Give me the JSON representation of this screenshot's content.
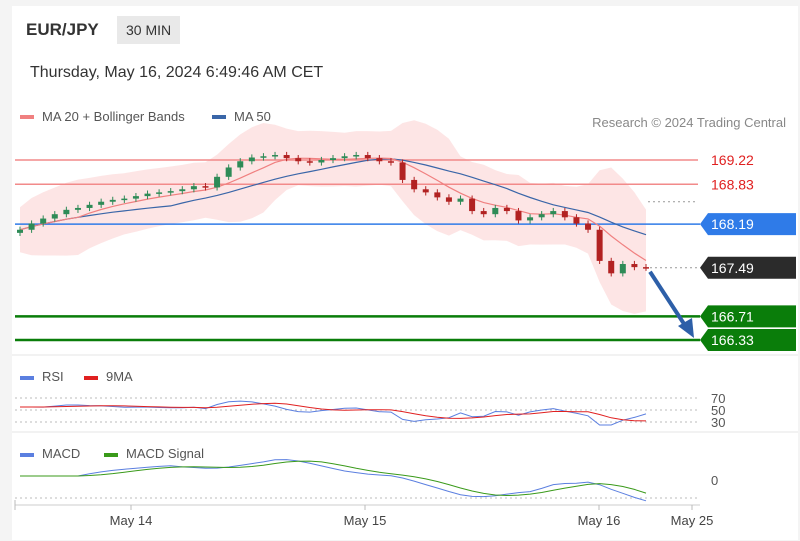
{
  "header": {
    "pair": "EUR/JPY",
    "timeframe": "30 MIN",
    "datetime": "Thursday, May 16, 2024 6:49:46 AM CET"
  },
  "legend_top": {
    "ma20": "MA 20 + Bollinger Bands",
    "ma50": "MA 50",
    "credit": "Research © 2024 Trading Central"
  },
  "legend_rsi": {
    "rsi": "RSI",
    "ma9": "9MA"
  },
  "legend_macd": {
    "macd": "MACD",
    "signal": "MACD Signal"
  },
  "colors": {
    "up": "#2e8b57",
    "down": "#b22222",
    "ma20": "#f08080",
    "ma50": "#3a66a8",
    "band": "#fde0e0",
    "resistance": "#f28a8a",
    "pivot": "#2f7be8",
    "support": "#0a7d0a",
    "last": "#2b2b2b",
    "arrow": "#2d5fa8",
    "rsi": "#5b7fe0",
    "rsi_ma": "#e02020",
    "macd": "#5b7fe0",
    "macd_signal": "#3a9a1a"
  },
  "chart_data": {
    "type": "candlestick",
    "title": "EUR/JPY 30 MIN",
    "x_ticks": [
      "May 14",
      "May 15",
      "May 16",
      "May 25"
    ],
    "price_levels": [
      {
        "name": "resistance",
        "value": 169.22
      },
      {
        "name": "resistance",
        "value": 168.83
      },
      {
        "name": "pivot",
        "value": 168.19
      },
      {
        "name": "last",
        "value": 167.49
      },
      {
        "name": "support",
        "value": 166.71
      },
      {
        "name": "support",
        "value": 166.33
      }
    ],
    "close_series": [
      168.1,
      168.2,
      168.28,
      168.35,
      168.42,
      168.45,
      168.5,
      168.55,
      168.58,
      168.6,
      168.64,
      168.68,
      168.7,
      168.72,
      168.75,
      168.8,
      168.78,
      168.95,
      169.1,
      169.2,
      169.26,
      169.28,
      169.3,
      169.25,
      169.2,
      169.18,
      169.22,
      169.25,
      169.28,
      169.3,
      169.25,
      169.2,
      169.18,
      168.9,
      168.75,
      168.7,
      168.62,
      168.55,
      168.6,
      168.4,
      168.35,
      168.45,
      168.4,
      168.25,
      168.3,
      168.35,
      168.4,
      168.3,
      168.2,
      168.1,
      167.6,
      167.4,
      167.55,
      167.5,
      167.49
    ],
    "oscillators": {
      "rsi_guides": [
        70,
        50,
        30
      ],
      "macd_guides": [
        0
      ]
    }
  }
}
